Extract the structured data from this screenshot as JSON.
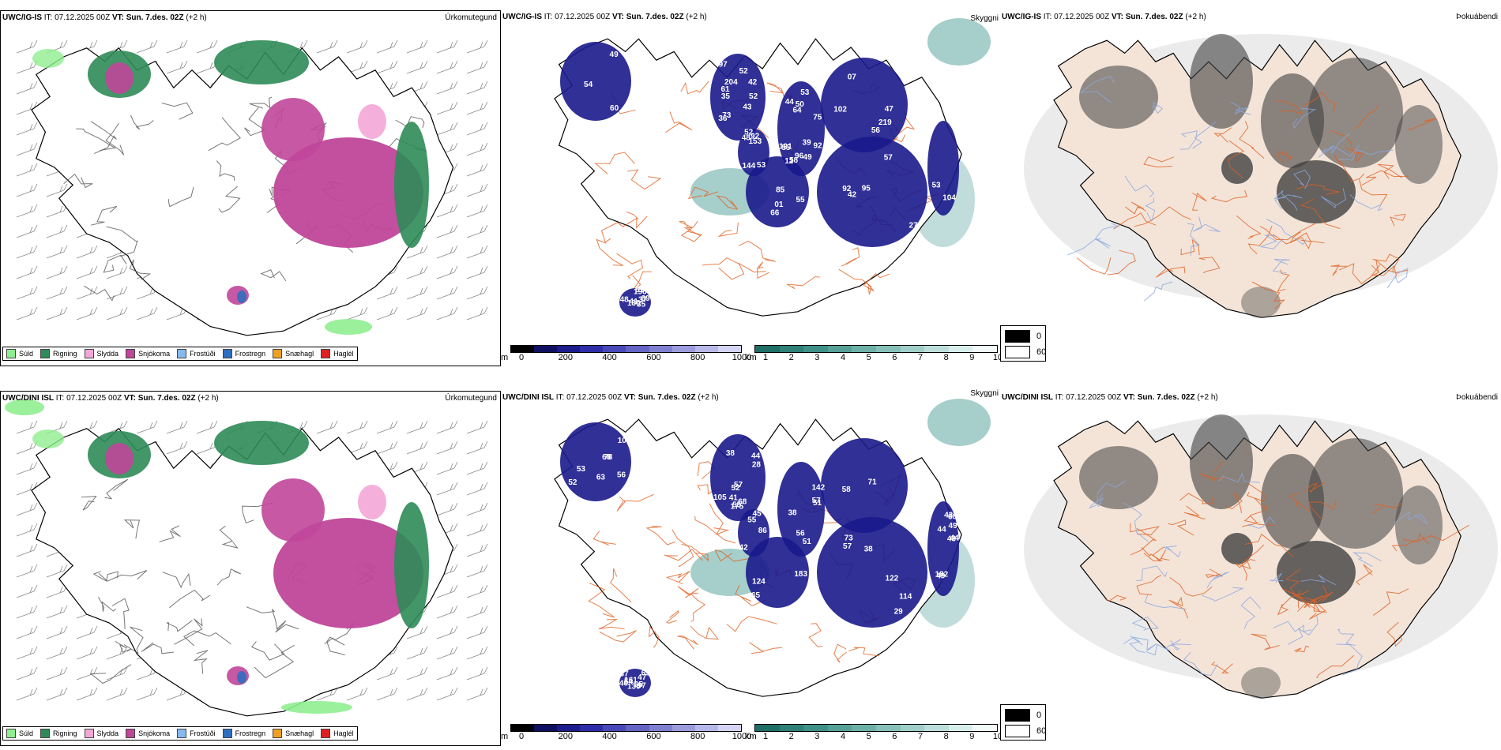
{
  "rows": [
    {
      "model": "UWC/IG-IS",
      "it_label": "IT:",
      "it_value": "07.12.2025 00Z",
      "vt_label": "VT:",
      "vt_value": "Sun. 7.des. 02Z",
      "lead": "(+2 h)",
      "panels": {
        "precip_title": "Úrkomutegund",
        "cloud_title": "Skyggni",
        "fog_title": "Þokuábendi"
      },
      "visibility_labels": [
        "55",
        "49",
        "73",
        "36",
        "37",
        "57",
        "48",
        "51",
        "52",
        "96",
        "01",
        "07",
        "61",
        "53",
        "75",
        "56",
        "12",
        "49",
        "102",
        "66",
        "35",
        "219",
        "198",
        "144",
        "55",
        "53",
        "54",
        "47",
        "44",
        "39",
        "35",
        "52",
        "41",
        "42",
        "92",
        "69",
        "130",
        "50",
        "95",
        "104",
        "60",
        "97",
        "48",
        "92",
        "204",
        "85",
        "191",
        "42",
        "153",
        "64",
        "53",
        "58",
        "92",
        "52",
        "27",
        "43"
      ],
      "vis_label_color": "#ffffff"
    },
    {
      "model": "UWC/DINI ISL",
      "it_label": "IT:",
      "it_value": "07.12.2025 00Z",
      "vt_label": "VT:",
      "vt_value": "Sun. 7.des. 02Z",
      "lead": "(+2 h)",
      "panels": {
        "precip_title": "Úrkomutegund",
        "cloud_title": "Skyggni",
        "fog_title": "Þokuábendi"
      },
      "visibility_labels": [
        "65",
        "56",
        "44",
        "43",
        "38",
        "38",
        "78",
        "57",
        "57",
        "58",
        "10",
        "57",
        "52",
        "51",
        "68",
        "45",
        "65",
        "161",
        "105",
        "38",
        "56",
        "44",
        "73",
        "71",
        "68",
        "63",
        "183",
        "53",
        "68",
        "48",
        "52",
        "47",
        "55",
        "41",
        "124",
        "142",
        "130",
        "114",
        "97",
        "55",
        "182",
        "65",
        "122",
        "44",
        "37",
        "175",
        "51",
        "40",
        "28",
        "86",
        "54",
        "49",
        "29",
        "49",
        "42"
      ],
      "vis_label_color": "#ffffff"
    }
  ],
  "precip_legend": [
    {
      "label": "Súld",
      "color": "#90ee90"
    },
    {
      "label": "Rigning",
      "color": "#2e8b57"
    },
    {
      "label": "Slydda",
      "color": "#f4a6d7"
    },
    {
      "label": "Snjókoma",
      "color": "#c0469a"
    },
    {
      "label": "Frostúði",
      "color": "#87b8ee"
    },
    {
      "label": "Frostregn",
      "color": "#2f6fc0"
    },
    {
      "label": "Snæhagl",
      "color": "#f0a020"
    },
    {
      "label": "Haglél",
      "color": "#e02020"
    }
  ],
  "ceiling_bar": {
    "unit": "m",
    "ticks": [
      "0",
      "200",
      "400",
      "600",
      "800",
      "1000"
    ],
    "colors": [
      "#000000",
      "#101060",
      "#1c1c8c",
      "#2e2ea8",
      "#4848b8",
      "#6464c4",
      "#8080d0",
      "#9c9cdc",
      "#b8b8e8",
      "#d4d4f4"
    ]
  },
  "visibility_bar": {
    "unit": "km",
    "ticks": [
      "1",
      "2",
      "3",
      "4",
      "5",
      "6",
      "7",
      "8",
      "9",
      "10"
    ],
    "colors": [
      "#1f6f66",
      "#2f8077",
      "#3f9088",
      "#56a098",
      "#6db0a8",
      "#86c0b9",
      "#a0cfc9",
      "#bcdeda",
      "#d8eeeb",
      "#f2faf9"
    ]
  },
  "fog_legend": {
    "values": [
      "0",
      "60"
    ],
    "colors": [
      "#000000",
      "#ffffff"
    ]
  },
  "colors": {
    "land_fill": "#f4e4d8",
    "coast": "#000000",
    "roads": "#e06020",
    "rivers": "#8aa8e0",
    "vis_blue": "#1a1a8c",
    "vis_teal": "#4e9e98",
    "snow": "#c0469a",
    "rain": "#2e8b57",
    "drizzle": "#90ee90"
  }
}
